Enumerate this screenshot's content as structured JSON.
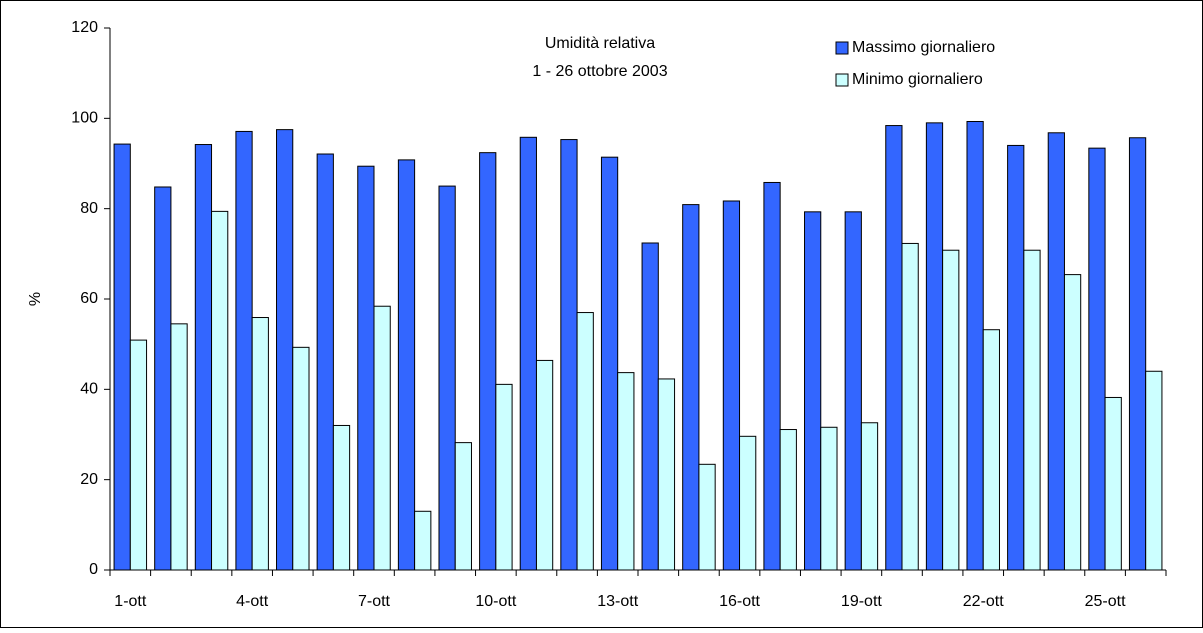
{
  "chart_data": {
    "type": "bar",
    "title": "Umidità relativa",
    "subtitle": "1 - 26 ottobre 2003",
    "y_label": "%",
    "categories": [
      "1-ott",
      null,
      null,
      "4-ott",
      null,
      null,
      "7-ott",
      null,
      null,
      "10-ott",
      null,
      null,
      "13-ott",
      null,
      null,
      "16-ott",
      null,
      null,
      "19-ott",
      null,
      null,
      "22-ott",
      null,
      null,
      "25-ott",
      null
    ],
    "series": [
      {
        "name": "Massimo giornaliero",
        "color": "#3366ff",
        "values": [
          94.3,
          84.8,
          94.2,
          97.1,
          97.5,
          92.1,
          89.4,
          90.8,
          85.0,
          92.4,
          95.8,
          95.3,
          91.4,
          72.4,
          80.9,
          81.7,
          85.8,
          79.3,
          79.3,
          98.4,
          99.0,
          99.3,
          94.0,
          96.8,
          93.4,
          95.7
        ]
      },
      {
        "name": "Minimo giornaliero",
        "color": "#ccffff",
        "values": [
          50.9,
          54.5,
          79.4,
          55.9,
          49.3,
          32.0,
          58.4,
          13.0,
          28.2,
          41.1,
          46.4,
          57.0,
          43.7,
          42.3,
          23.4,
          29.6,
          31.1,
          31.6,
          32.6,
          72.3,
          70.8,
          53.2,
          70.8,
          65.4,
          38.2,
          44.0
        ]
      }
    ],
    "ylim": [
      0,
      120
    ],
    "yticks": [
      0,
      20,
      40,
      60,
      80,
      100,
      120
    ],
    "legend": "top-right",
    "grid": false
  }
}
